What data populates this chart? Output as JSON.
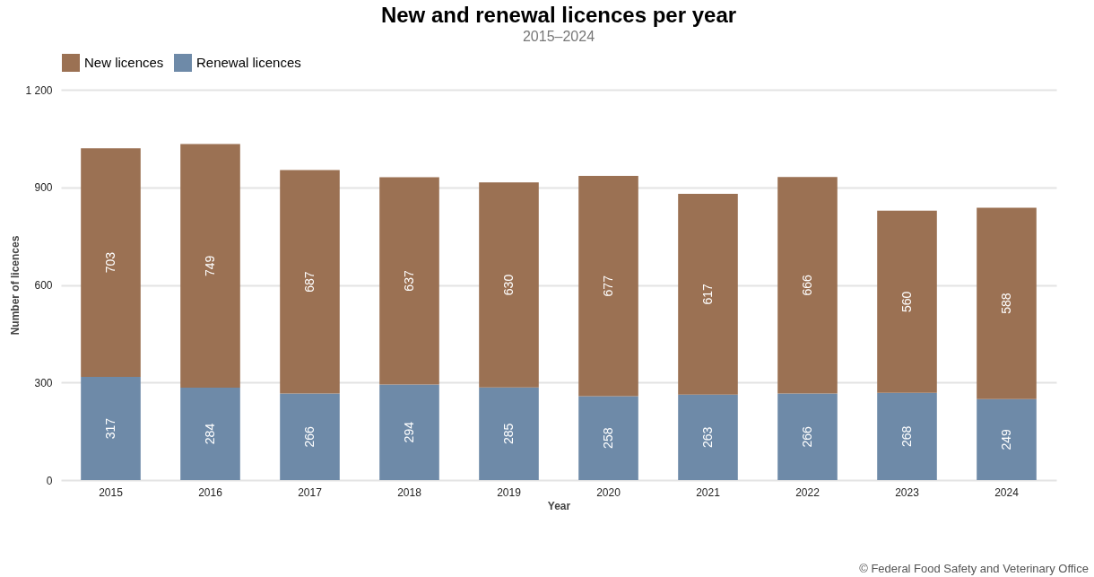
{
  "chart_data": {
    "type": "bar",
    "title": "New and renewal licences per year",
    "subtitle": "2015–2024",
    "xlabel": "Year",
    "ylabel": "Number of licences",
    "categories": [
      "2015",
      "2016",
      "2017",
      "2018",
      "2019",
      "2020",
      "2021",
      "2022",
      "2023",
      "2024"
    ],
    "stacked": true,
    "series": [
      {
        "name": "Renewal licences",
        "color": "#6e8aa8",
        "values": [
          317,
          284,
          266,
          294,
          285,
          258,
          263,
          266,
          268,
          249
        ]
      },
      {
        "name": "New licences",
        "color": "#9b7153",
        "values": [
          703,
          749,
          687,
          637,
          630,
          677,
          617,
          666,
          560,
          588
        ]
      }
    ],
    "ylim": [
      0,
      1200
    ],
    "yticks": [
      0,
      300,
      600,
      900,
      {
        "value": 1200,
        "label": "1 200"
      }
    ],
    "grid": "y",
    "legend": "top",
    "data_labels": true,
    "annotations": [
      "© Federal Food Safety and Veterinary Office"
    ]
  }
}
